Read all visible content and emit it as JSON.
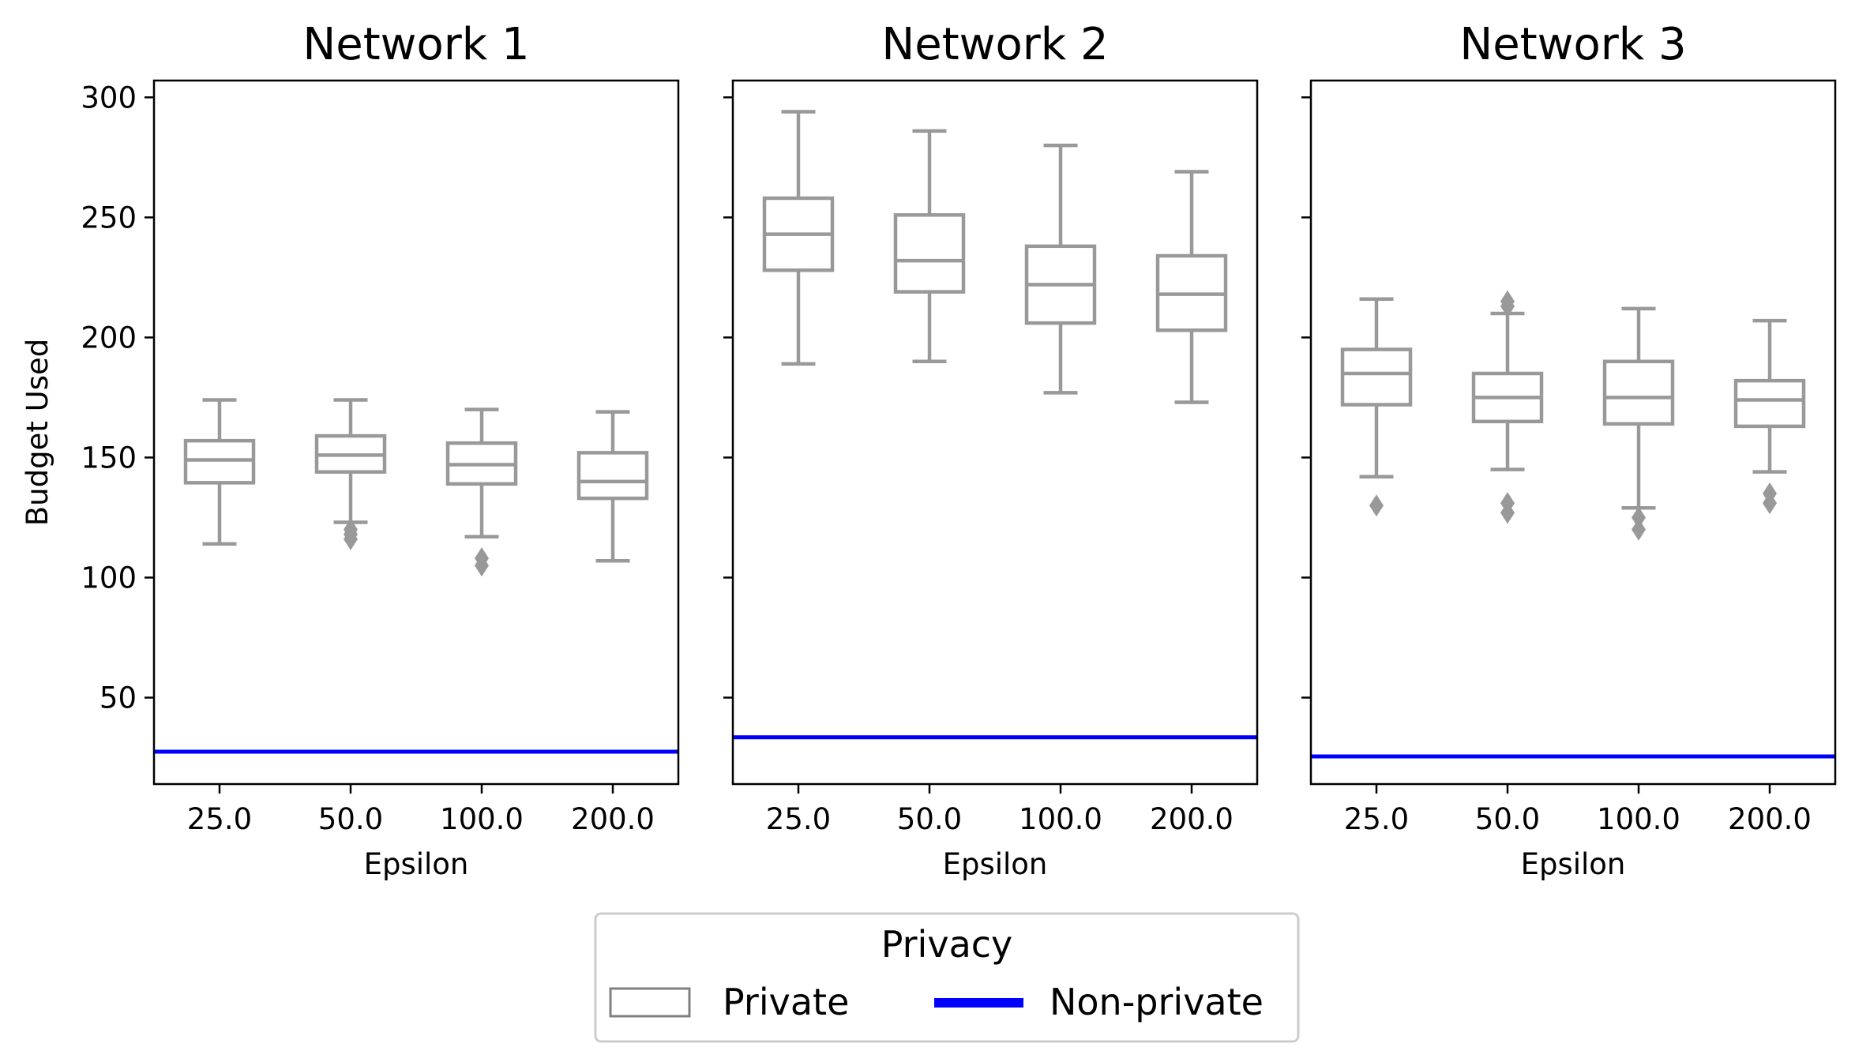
{
  "chart_data": [
    {
      "type": "box",
      "title": "Network 1",
      "xlabel": "Epsilon",
      "ylabel": "Budget Used",
      "categories": [
        "25.0",
        "50.0",
        "100.0",
        "200.0"
      ],
      "ylim": [
        14,
        307
      ],
      "yticks": [
        50,
        100,
        150,
        200,
        250,
        300
      ],
      "series": [
        {
          "name": "Private",
          "boxes": [
            {
              "whislo": 114,
              "q1": 139.5,
              "med": 149,
              "q3": 157,
              "whishi": 174,
              "fliers": []
            },
            {
              "whislo": 123,
              "q1": 144,
              "med": 151,
              "q3": 159,
              "whishi": 174,
              "fliers": [
                116,
                118,
                120
              ]
            },
            {
              "whislo": 117,
              "q1": 139,
              "med": 147,
              "q3": 156,
              "whishi": 170,
              "fliers": [
                105,
                108
              ]
            },
            {
              "whislo": 107,
              "q1": 133,
              "med": 140,
              "q3": 152,
              "whishi": 169,
              "fliers": []
            }
          ]
        },
        {
          "name": "Non-private",
          "value": 27.5
        }
      ]
    },
    {
      "type": "box",
      "title": "Network 2",
      "xlabel": "Epsilon",
      "ylabel": "",
      "categories": [
        "25.0",
        "50.0",
        "100.0",
        "200.0"
      ],
      "ylim": [
        14,
        307
      ],
      "yticks": [
        50,
        100,
        150,
        200,
        250,
        300
      ],
      "series": [
        {
          "name": "Private",
          "boxes": [
            {
              "whislo": 189,
              "q1": 228,
              "med": 243,
              "q3": 258,
              "whishi": 294,
              "fliers": []
            },
            {
              "whislo": 190,
              "q1": 219,
              "med": 232,
              "q3": 251,
              "whishi": 286,
              "fliers": []
            },
            {
              "whislo": 177,
              "q1": 206,
              "med": 222,
              "q3": 238,
              "whishi": 280,
              "fliers": []
            },
            {
              "whislo": 173,
              "q1": 203,
              "med": 218,
              "q3": 234,
              "whishi": 269,
              "fliers": []
            }
          ]
        },
        {
          "name": "Non-private",
          "value": 33.5
        }
      ]
    },
    {
      "type": "box",
      "title": "Network 3",
      "xlabel": "Epsilon",
      "ylabel": "",
      "categories": [
        "25.0",
        "50.0",
        "100.0",
        "200.0"
      ],
      "ylim": [
        14,
        307
      ],
      "yticks": [
        50,
        100,
        150,
        200,
        250,
        300
      ],
      "series": [
        {
          "name": "Private",
          "boxes": [
            {
              "whislo": 142,
              "q1": 172,
              "med": 185,
              "q3": 195,
              "whishi": 216,
              "fliers": [
                130
              ]
            },
            {
              "whislo": 145,
              "q1": 165,
              "med": 175,
              "q3": 185,
              "whishi": 210,
              "fliers": [
                213,
                215,
                127,
                131
              ]
            },
            {
              "whislo": 129,
              "q1": 164,
              "med": 175,
              "q3": 190,
              "whishi": 212,
              "fliers": [
                120,
                125
              ]
            },
            {
              "whislo": 144,
              "q1": 163,
              "med": 174,
              "q3": 182,
              "whishi": 207,
              "fliers": [
                131,
                135
              ]
            }
          ]
        },
        {
          "name": "Non-private",
          "value": 25.5
        }
      ]
    }
  ],
  "legend": {
    "title": "Privacy",
    "placement": "bottom-center",
    "items": [
      {
        "label": "Private",
        "kind": "box",
        "color": "#808080"
      },
      {
        "label": "Non-private",
        "kind": "line",
        "color": "#0000ff"
      }
    ]
  },
  "colors": {
    "box_stroke": "#999999",
    "flier": "#999999",
    "nonprivate_line": "#0000ff",
    "axes": "#000000"
  }
}
